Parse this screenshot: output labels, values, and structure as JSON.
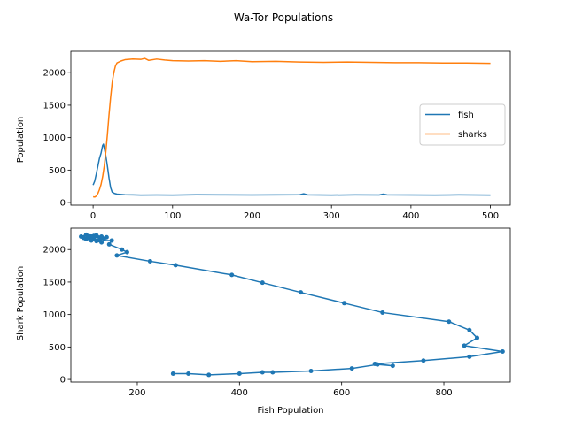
{
  "figure": {
    "title": "Wa-Tor Populations"
  },
  "chart_data": [
    {
      "type": "line",
      "xlabel": "",
      "ylabel": "Population",
      "xlim": [
        -28,
        525
      ],
      "ylim": [
        -40,
        2330
      ],
      "xticks": [
        0,
        100,
        200,
        300,
        400,
        500
      ],
      "yticks": [
        0,
        500,
        1000,
        1500,
        2000
      ],
      "legend_position": "center-right",
      "grid": false,
      "series": [
        {
          "name": "fish",
          "color": "#1f77b4",
          "points": [
            [
              0,
              270
            ],
            [
              2,
              330
            ],
            [
              4,
              440
            ],
            [
              6,
              560
            ],
            [
              8,
              680
            ],
            [
              10,
              760
            ],
            [
              12,
              880
            ],
            [
              13,
              900
            ],
            [
              14,
              840
            ],
            [
              16,
              720
            ],
            [
              18,
              560
            ],
            [
              20,
              380
            ],
            [
              22,
              230
            ],
            [
              24,
              160
            ],
            [
              27,
              140
            ],
            [
              30,
              130
            ],
            [
              35,
              125
            ],
            [
              40,
              120
            ],
            [
              50,
              118
            ],
            [
              60,
              115
            ],
            [
              80,
              117
            ],
            [
              100,
              115
            ],
            [
              130,
              120
            ],
            [
              160,
              118
            ],
            [
              200,
              116
            ],
            [
              230,
              118
            ],
            [
              260,
              120
            ],
            [
              265,
              135
            ],
            [
              270,
              118
            ],
            [
              300,
              115
            ],
            [
              330,
              118
            ],
            [
              360,
              117
            ],
            [
              365,
              130
            ],
            [
              370,
              118
            ],
            [
              400,
              116
            ],
            [
              430,
              115
            ],
            [
              460,
              118
            ],
            [
              480,
              116
            ],
            [
              500,
              115
            ]
          ]
        },
        {
          "name": "sharks",
          "color": "#ff7f0e",
          "points": [
            [
              0,
              90
            ],
            [
              2,
              85
            ],
            [
              4,
              100
            ],
            [
              6,
              140
            ],
            [
              8,
              200
            ],
            [
              10,
              280
            ],
            [
              12,
              400
            ],
            [
              14,
              560
            ],
            [
              16,
              780
            ],
            [
              18,
              1050
            ],
            [
              20,
              1350
            ],
            [
              22,
              1620
            ],
            [
              24,
              1850
            ],
            [
              26,
              2000
            ],
            [
              28,
              2100
            ],
            [
              30,
              2150
            ],
            [
              35,
              2180
            ],
            [
              40,
              2200
            ],
            [
              50,
              2210
            ],
            [
              60,
              2205
            ],
            [
              65,
              2220
            ],
            [
              70,
              2190
            ],
            [
              80,
              2210
            ],
            [
              90,
              2195
            ],
            [
              100,
              2185
            ],
            [
              120,
              2180
            ],
            [
              140,
              2185
            ],
            [
              160,
              2175
            ],
            [
              180,
              2185
            ],
            [
              200,
              2170
            ],
            [
              230,
              2175
            ],
            [
              260,
              2165
            ],
            [
              290,
              2160
            ],
            [
              320,
              2165
            ],
            [
              350,
              2160
            ],
            [
              380,
              2155
            ],
            [
              410,
              2155
            ],
            [
              440,
              2150
            ],
            [
              470,
              2150
            ],
            [
              500,
              2145
            ]
          ]
        }
      ]
    },
    {
      "type": "line",
      "xlabel": "Fish Population",
      "ylabel": "Shark Population",
      "xlim": [
        70,
        930
      ],
      "ylim": [
        -40,
        2330
      ],
      "xticks": [
        200,
        400,
        600,
        800
      ],
      "yticks": [
        0,
        500,
        1000,
        1500,
        2000
      ],
      "grid": false,
      "series": [
        {
          "color": "#1f77b4",
          "markers": true,
          "points": [
            [
              270,
              90
            ],
            [
              300,
              90
            ],
            [
              340,
              70
            ],
            [
              400,
              90
            ],
            [
              445,
              110
            ],
            [
              465,
              110
            ],
            [
              540,
              130
            ],
            [
              620,
              170
            ],
            [
              670,
              230
            ],
            [
              700,
              210
            ],
            [
              665,
              240
            ],
            [
              760,
              290
            ],
            [
              850,
              350
            ],
            [
              915,
              430
            ],
            [
              840,
              520
            ],
            [
              865,
              640
            ],
            [
              850,
              760
            ],
            [
              810,
              890
            ],
            [
              680,
              1030
            ],
            [
              605,
              1175
            ],
            [
              520,
              1340
            ],
            [
              445,
              1490
            ],
            [
              385,
              1610
            ],
            [
              275,
              1760
            ],
            [
              225,
              1820
            ],
            [
              160,
              1910
            ],
            [
              180,
              1960
            ],
            [
              170,
              2000
            ],
            [
              145,
              2080
            ],
            [
              150,
              2140
            ],
            [
              110,
              2140
            ],
            [
              90,
              2200
            ],
            [
              100,
              2230
            ],
            [
              120,
              2220
            ],
            [
              130,
              2200
            ],
            [
              105,
              2180
            ],
            [
              115,
              2170
            ],
            [
              125,
              2150
            ],
            [
              100,
              2160
            ],
            [
              110,
              2190
            ],
            [
              140,
              2190
            ],
            [
              120,
              2130
            ],
            [
              130,
              2110
            ],
            [
              105,
              2200
            ],
            [
              95,
              2180
            ],
            [
              115,
              2210
            ],
            [
              135,
              2170
            ],
            [
              110,
              2150
            ]
          ]
        }
      ]
    }
  ]
}
